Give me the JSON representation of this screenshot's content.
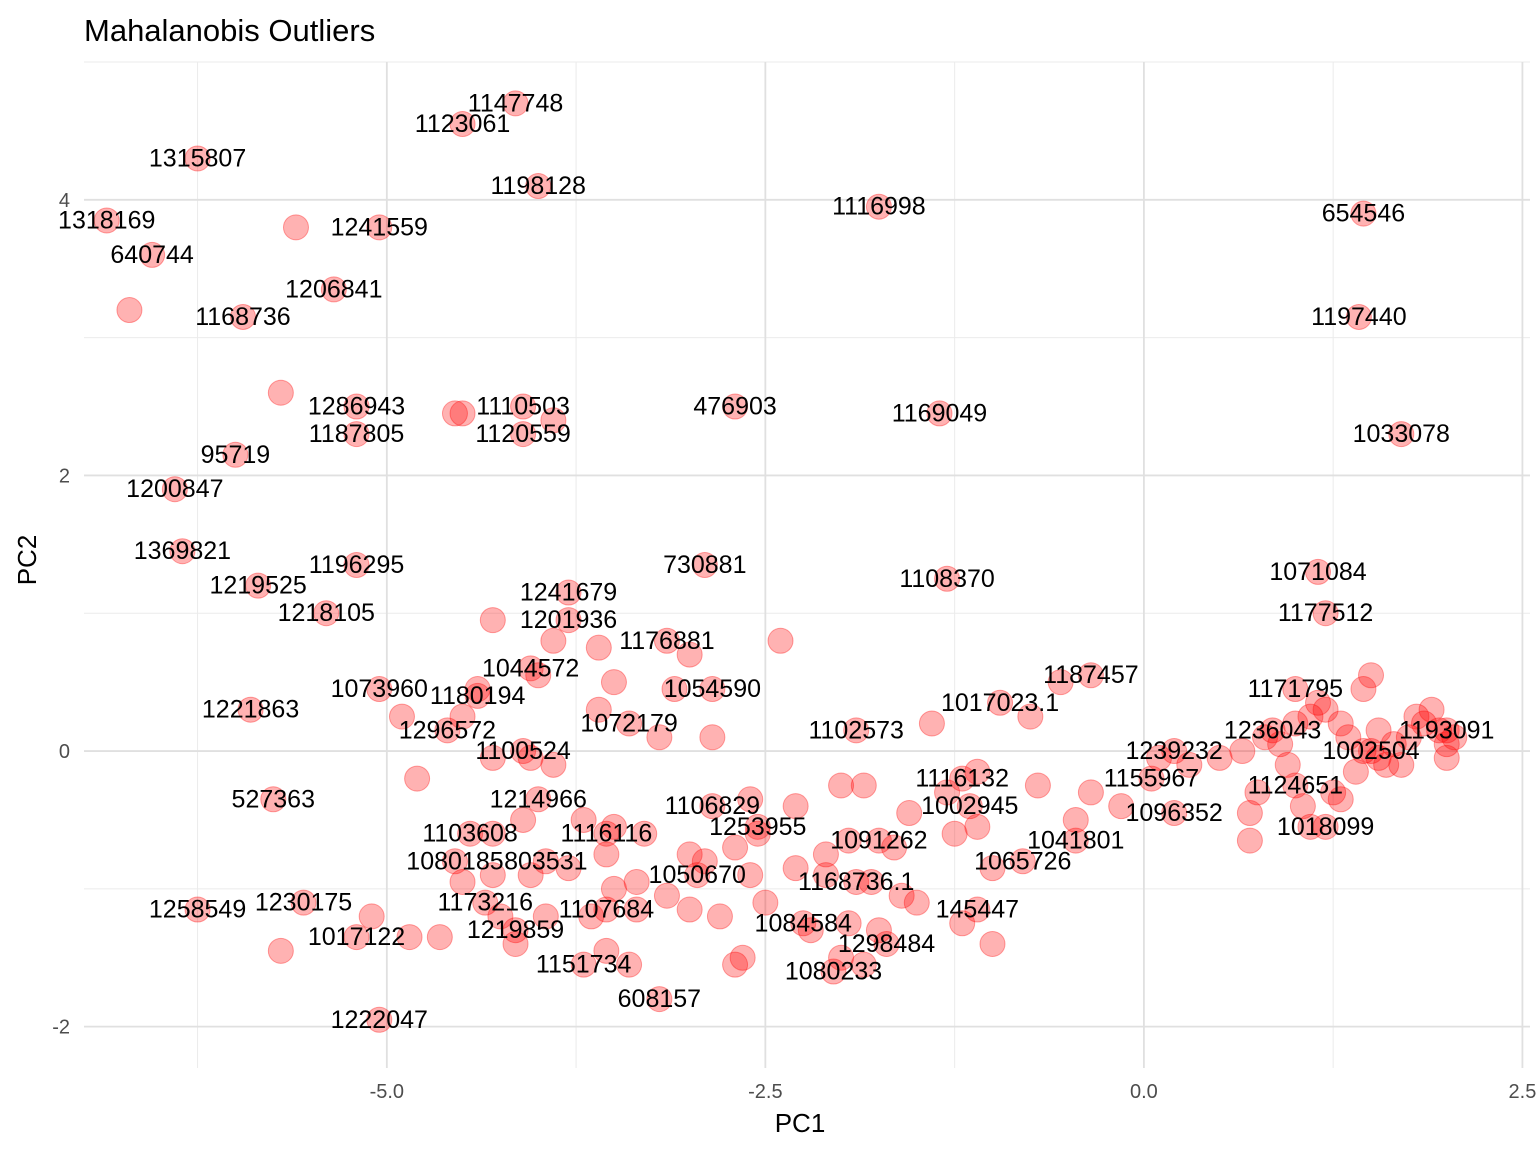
{
  "chart_data": {
    "type": "scatter",
    "title": "Mahalanobis Outliers",
    "xlabel": "PC1",
    "ylabel": "PC2",
    "xlim": [
      -7.0,
      2.55
    ],
    "ylim": [
      -2.3,
      5.0
    ],
    "x_ticks": [
      -5.0,
      -2.5,
      0.0,
      2.5
    ],
    "x_tick_labels": [
      "-5.0",
      "-2.5",
      "0.0",
      "2.5"
    ],
    "y_ticks": [
      -2,
      0,
      2,
      4
    ],
    "y_tick_labels": [
      "-2",
      "0",
      "2",
      "4"
    ],
    "grid": true,
    "point_color": "#ff0000",
    "point_opacity": 0.3,
    "labeled_points": [
      {
        "id": "1147748",
        "x": -4.15,
        "y": 4.7
      },
      {
        "id": "1123061",
        "x": -4.5,
        "y": 4.55
      },
      {
        "id": "1315807",
        "x": -6.25,
        "y": 4.3
      },
      {
        "id": "1198128",
        "x": -4.0,
        "y": 4.1
      },
      {
        "id": "1116998",
        "x": -1.75,
        "y": 3.95
      },
      {
        "id": "654546",
        "x": 1.45,
        "y": 3.9
      },
      {
        "id": "1318169",
        "x": -6.85,
        "y": 3.85
      },
      {
        "id": "1241559",
        "x": -5.05,
        "y": 3.8
      },
      {
        "id": "640744",
        "x": -6.55,
        "y": 3.6
      },
      {
        "id": "1206841",
        "x": -5.35,
        "y": 3.35
      },
      {
        "id": "1168736",
        "x": -5.95,
        "y": 3.15
      },
      {
        "id": "1197440",
        "x": 1.42,
        "y": 3.15
      },
      {
        "id": "1286943",
        "x": -5.2,
        "y": 2.5
      },
      {
        "id": "1110503",
        "x": -4.1,
        "y": 2.5
      },
      {
        "id": "476903",
        "x": -2.7,
        "y": 2.5
      },
      {
        "id": "1169049",
        "x": -1.35,
        "y": 2.45
      },
      {
        "id": "1187805",
        "x": -5.2,
        "y": 2.3
      },
      {
        "id": "1120559",
        "x": -4.1,
        "y": 2.3
      },
      {
        "id": "1033078",
        "x": 1.7,
        "y": 2.3
      },
      {
        "id": "95719",
        "x": -6.0,
        "y": 2.15
      },
      {
        "id": "1200847",
        "x": -6.4,
        "y": 1.9
      },
      {
        "id": "1369821",
        "x": -6.35,
        "y": 1.45
      },
      {
        "id": "1196295",
        "x": -5.2,
        "y": 1.35
      },
      {
        "id": "730881",
        "x": -2.9,
        "y": 1.35
      },
      {
        "id": "1071084",
        "x": 1.15,
        "y": 1.3
      },
      {
        "id": "1108370",
        "x": -1.3,
        "y": 1.25
      },
      {
        "id": "1219525",
        "x": -5.85,
        "y": 1.2
      },
      {
        "id": "1241679",
        "x": -3.8,
        "y": 1.15
      },
      {
        "id": "1218105",
        "x": -5.4,
        "y": 1.0
      },
      {
        "id": "1177512",
        "x": 1.2,
        "y": 1.0
      },
      {
        "id": "1201936",
        "x": -3.8,
        "y": 0.95
      },
      {
        "id": "1176881",
        "x": -3.15,
        "y": 0.8
      },
      {
        "id": "1044572",
        "x": -4.05,
        "y": 0.6
      },
      {
        "id": "1187457",
        "x": -0.35,
        "y": 0.55
      },
      {
        "id": "1054590",
        "x": -2.85,
        "y": 0.45
      },
      {
        "id": "1073960",
        "x": -5.05,
        "y": 0.45
      },
      {
        "id": "1171795",
        "x": 1.0,
        "y": 0.45
      },
      {
        "id": "1180194",
        "x": -4.4,
        "y": 0.4
      },
      {
        "id": "1017023.1",
        "x": -0.95,
        "y": 0.35
      },
      {
        "id": "1221863",
        "x": -5.9,
        "y": 0.3
      },
      {
        "id": "1072179",
        "x": -3.4,
        "y": 0.2
      },
      {
        "id": "1296572",
        "x": -4.6,
        "y": 0.15
      },
      {
        "id": "1102573",
        "x": -1.9,
        "y": 0.15
      },
      {
        "id": "1236043",
        "x": 0.85,
        "y": 0.15
      },
      {
        "id": "1193091",
        "x": 2.0,
        "y": 0.15
      },
      {
        "id": "1100524",
        "x": -4.1,
        "y": 0.0
      },
      {
        "id": "1239232",
        "x": 0.2,
        "y": 0.0
      },
      {
        "id": "1002504",
        "x": 1.5,
        "y": 0.0
      },
      {
        "id": "1116132",
        "x": -1.2,
        "y": -0.2
      },
      {
        "id": "1155967",
        "x": 0.05,
        "y": -0.2
      },
      {
        "id": "1124651",
        "x": 1.0,
        "y": -0.25
      },
      {
        "id": "527363",
        "x": -5.75,
        "y": -0.35
      },
      {
        "id": "1214966",
        "x": -4.0,
        "y": -0.35
      },
      {
        "id": "1106829",
        "x": -2.85,
        "y": -0.4
      },
      {
        "id": "1002945",
        "x": -1.15,
        "y": -0.4
      },
      {
        "id": "1096352",
        "x": 0.2,
        "y": -0.45
      },
      {
        "id": "1253955",
        "x": -2.55,
        "y": -0.55
      },
      {
        "id": "1018099",
        "x": 1.2,
        "y": -0.55
      },
      {
        "id": "1103608",
        "x": -4.45,
        "y": -0.6
      },
      {
        "id": "1116116",
        "x": -3.55,
        "y": -0.6
      },
      {
        "id": "1091262",
        "x": -1.75,
        "y": -0.65
      },
      {
        "id": "1041801",
        "x": -0.45,
        "y": -0.65
      },
      {
        "id": "1080185",
        "x": -4.55,
        "y": -0.8
      },
      {
        "id": "803531",
        "x": -3.95,
        "y": -0.8
      },
      {
        "id": "1065726",
        "x": -0.8,
        "y": -0.8
      },
      {
        "id": "1050670",
        "x": -2.95,
        "y": -0.9
      },
      {
        "id": "1168736.1",
        "x": -1.9,
        "y": -0.95
      },
      {
        "id": "1173216",
        "x": -4.35,
        "y": -1.1
      },
      {
        "id": "1107684",
        "x": -3.55,
        "y": -1.15
      },
      {
        "id": "1230175",
        "x": -5.55,
        "y": -1.1
      },
      {
        "id": "1258549",
        "x": -6.25,
        "y": -1.15
      },
      {
        "id": "145447",
        "x": -1.1,
        "y": -1.15
      },
      {
        "id": "1084584",
        "x": -2.25,
        "y": -1.25
      },
      {
        "id": "1219859",
        "x": -4.15,
        "y": -1.3
      },
      {
        "id": "1017122",
        "x": -5.2,
        "y": -1.35
      },
      {
        "id": "1298484",
        "x": -1.7,
        "y": -1.4
      },
      {
        "id": "1151734",
        "x": -3.7,
        "y": -1.55
      },
      {
        "id": "1080233",
        "x": -2.05,
        "y": -1.6
      },
      {
        "id": "608157",
        "x": -3.2,
        "y": -1.8
      },
      {
        "id": "1222047",
        "x": -5.05,
        "y": -1.95
      }
    ],
    "unlabeled_points": [
      [
        -5.6,
        3.8
      ],
      [
        -6.7,
        3.2
      ],
      [
        -5.7,
        2.6
      ],
      [
        -4.55,
        2.45
      ],
      [
        -4.5,
        2.45
      ],
      [
        -3.9,
        2.4
      ],
      [
        -4.3,
        0.95
      ],
      [
        -3.9,
        0.8
      ],
      [
        -3.6,
        0.75
      ],
      [
        -2.4,
        0.8
      ],
      [
        -3.5,
        0.5
      ],
      [
        -3.0,
        0.7
      ],
      [
        -4.0,
        0.55
      ],
      [
        -3.1,
        0.45
      ],
      [
        -4.4,
        0.45
      ],
      [
        -4.9,
        0.25
      ],
      [
        -4.5,
        0.25
      ],
      [
        -3.6,
        0.3
      ],
      [
        -3.2,
        0.1
      ],
      [
        -2.85,
        0.1
      ],
      [
        -4.3,
        -0.05
      ],
      [
        -4.8,
        -0.2
      ],
      [
        -3.9,
        -0.1
      ],
      [
        -4.05,
        -0.05
      ],
      [
        -2.6,
        -0.35
      ],
      [
        -2.3,
        -0.4
      ],
      [
        -2.0,
        -0.25
      ],
      [
        -1.85,
        -0.25
      ],
      [
        -1.3,
        -0.3
      ],
      [
        -0.7,
        -0.25
      ],
      [
        -0.35,
        -0.3
      ],
      [
        -0.15,
        -0.4
      ],
      [
        -0.45,
        -0.5
      ],
      [
        -1.55,
        -0.45
      ],
      [
        -1.1,
        -0.55
      ],
      [
        -1.25,
        -0.6
      ],
      [
        -1.65,
        -0.7
      ],
      [
        -1.0,
        -0.85
      ],
      [
        -1.95,
        -0.65
      ],
      [
        -2.1,
        -0.75
      ],
      [
        -2.55,
        -0.6
      ],
      [
        -2.7,
        -0.7
      ],
      [
        -3.0,
        -0.75
      ],
      [
        -3.3,
        -0.6
      ],
      [
        -3.5,
        -0.55
      ],
      [
        -3.7,
        -0.5
      ],
      [
        -4.1,
        -0.5
      ],
      [
        -4.3,
        -0.6
      ],
      [
        -3.55,
        -0.75
      ],
      [
        -3.8,
        -0.85
      ],
      [
        -4.05,
        -0.9
      ],
      [
        -4.3,
        -0.9
      ],
      [
        -4.5,
        -0.95
      ],
      [
        -3.5,
        -1.0
      ],
      [
        -3.35,
        -0.95
      ],
      [
        -3.15,
        -1.05
      ],
      [
        -2.9,
        -0.8
      ],
      [
        -2.6,
        -0.9
      ],
      [
        -2.3,
        -0.85
      ],
      [
        -2.1,
        -0.9
      ],
      [
        -1.8,
        -0.95
      ],
      [
        -1.6,
        -1.05
      ],
      [
        -1.5,
        -1.1
      ],
      [
        -2.5,
        -1.1
      ],
      [
        -2.8,
        -1.2
      ],
      [
        -3.0,
        -1.15
      ],
      [
        -3.35,
        -1.15
      ],
      [
        -3.65,
        -1.2
      ],
      [
        -3.95,
        -1.2
      ],
      [
        -4.25,
        -1.2
      ],
      [
        -4.65,
        -1.35
      ],
      [
        -4.85,
        -1.35
      ],
      [
        -5.1,
        -1.2
      ],
      [
        -5.7,
        -1.45
      ],
      [
        -4.15,
        -1.4
      ],
      [
        -3.55,
        -1.45
      ],
      [
        -3.4,
        -1.55
      ],
      [
        -2.65,
        -1.5
      ],
      [
        -2.7,
        -1.55
      ],
      [
        -2.2,
        -1.3
      ],
      [
        -1.95,
        -1.25
      ],
      [
        -1.75,
        -1.3
      ],
      [
        -1.2,
        -1.25
      ],
      [
        -1.0,
        -1.4
      ],
      [
        -2.0,
        -1.5
      ],
      [
        -1.85,
        -1.55
      ],
      [
        -1.1,
        -0.15
      ],
      [
        -1.4,
        0.2
      ],
      [
        -0.75,
        0.25
      ],
      [
        -0.55,
        0.5
      ],
      [
        0.1,
        -0.05
      ],
      [
        0.3,
        -0.1
      ],
      [
        0.5,
        -0.05
      ],
      [
        0.65,
        0.0
      ],
      [
        0.8,
        0.1
      ],
      [
        0.9,
        0.05
      ],
      [
        1.0,
        0.2
      ],
      [
        1.1,
        0.25
      ],
      [
        1.2,
        0.3
      ],
      [
        1.3,
        0.2
      ],
      [
        1.35,
        0.1
      ],
      [
        1.45,
        0.0
      ],
      [
        1.55,
        -0.05
      ],
      [
        1.65,
        0.05
      ],
      [
        1.75,
        0.1
      ],
      [
        1.85,
        0.2
      ],
      [
        1.95,
        0.15
      ],
      [
        2.05,
        0.1
      ],
      [
        1.4,
        -0.15
      ],
      [
        1.6,
        -0.1
      ],
      [
        1.8,
        0.25
      ],
      [
        1.9,
        0.3
      ],
      [
        2.0,
        0.05
      ],
      [
        1.7,
        -0.1
      ],
      [
        1.25,
        -0.3
      ],
      [
        1.3,
        -0.35
      ],
      [
        1.05,
        -0.4
      ],
      [
        1.1,
        -0.55
      ],
      [
        0.7,
        -0.45
      ],
      [
        0.75,
        -0.3
      ],
      [
        0.95,
        -0.1
      ],
      [
        0.7,
        -0.65
      ],
      [
        1.5,
        0.55
      ],
      [
        1.45,
        0.45
      ],
      [
        1.15,
        0.35
      ],
      [
        2.0,
        -0.05
      ],
      [
        1.55,
        0.15
      ]
    ]
  }
}
